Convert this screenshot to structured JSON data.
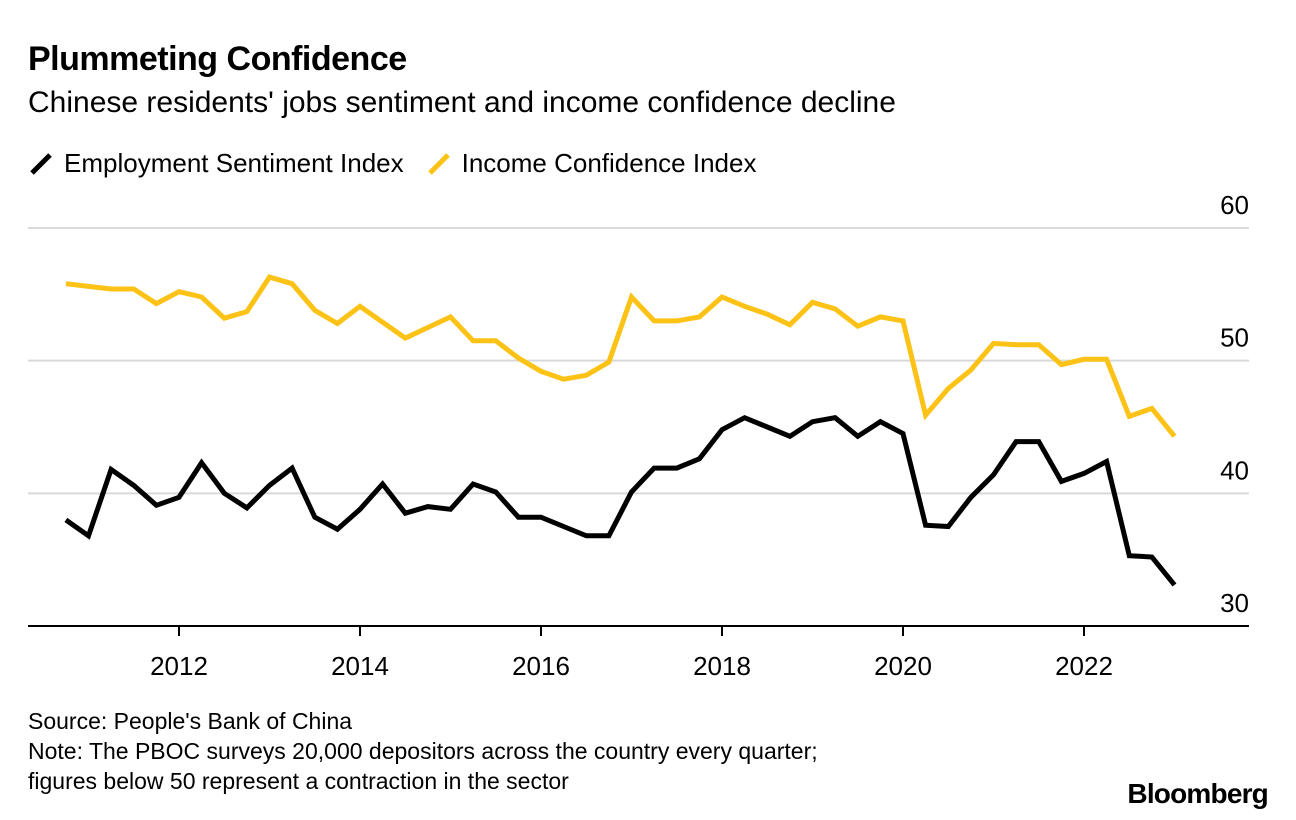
{
  "chart_data": {
    "type": "line",
    "title": "Plummeting Confidence",
    "subtitle": "Chinese residents' jobs sentiment and income confidence decline",
    "xlabel": "",
    "ylabel": "",
    "xlim": [
      2010.6,
      2023.75
    ],
    "ylim": [
      30,
      60
    ],
    "yticks": [
      60,
      50,
      40,
      30
    ],
    "xticks": [
      2012,
      2014,
      2016,
      2018,
      2020,
      2022
    ],
    "xtick_labels": [
      "2012",
      "2014",
      "2016",
      "2018",
      "2020",
      "2022"
    ],
    "grid": true,
    "legend_position": "top-left",
    "x": [
      2010.75,
      2011.0,
      2011.25,
      2011.5,
      2011.75,
      2012.0,
      2012.25,
      2012.5,
      2012.75,
      2013.0,
      2013.25,
      2013.5,
      2013.75,
      2014.0,
      2014.25,
      2014.5,
      2014.75,
      2015.0,
      2015.25,
      2015.5,
      2015.75,
      2016.0,
      2016.25,
      2016.5,
      2016.75,
      2017.0,
      2017.25,
      2017.5,
      2017.75,
      2018.0,
      2018.25,
      2018.5,
      2018.75,
      2019.0,
      2019.25,
      2019.5,
      2019.75,
      2020.0,
      2020.25,
      2020.5,
      2020.75,
      2021.0,
      2021.25,
      2021.5,
      2021.75,
      2022.0,
      2022.25,
      2022.5,
      2022.75,
      2023.0
    ],
    "series": [
      {
        "name": "Employment Sentiment Index",
        "color": "#000000",
        "values": [
          38.0,
          36.8,
          41.8,
          40.6,
          39.1,
          39.7,
          42.3,
          40.0,
          38.9,
          40.6,
          41.9,
          38.2,
          37.3,
          38.8,
          40.7,
          38.5,
          39.0,
          38.8,
          40.7,
          40.1,
          38.2,
          38.2,
          37.5,
          36.8,
          36.8,
          40.1,
          41.9,
          41.9,
          42.6,
          44.8,
          45.7,
          45.0,
          44.3,
          45.4,
          45.7,
          44.3,
          45.4,
          44.5,
          37.6,
          37.5,
          39.7,
          41.4,
          43.9,
          43.9,
          40.9,
          41.5,
          42.4,
          35.3,
          35.2,
          33.1
        ]
      },
      {
        "name": "Income Confidence Index",
        "color": "#fcc216",
        "values": [
          55.8,
          55.6,
          55.4,
          55.4,
          54.3,
          55.2,
          54.8,
          53.2,
          53.7,
          56.3,
          55.8,
          53.8,
          52.8,
          54.1,
          52.9,
          51.7,
          52.5,
          53.3,
          51.5,
          51.5,
          50.2,
          49.2,
          48.6,
          48.9,
          49.9,
          54.8,
          53.0,
          53.0,
          53.3,
          54.8,
          54.1,
          53.5,
          52.7,
          54.4,
          53.9,
          52.6,
          53.3,
          53.0,
          45.9,
          47.9,
          49.3,
          51.3,
          51.2,
          51.2,
          49.7,
          50.1,
          50.1,
          45.8,
          46.4,
          44.3
        ]
      }
    ]
  },
  "source": "Source: People's Bank of China",
  "note_line1": "Note: The PBOC surveys 20,000 depositors across the country every quarter;",
  "note_line2": "figures below 50 represent a contraction in the sector",
  "brand": "Bloomberg"
}
